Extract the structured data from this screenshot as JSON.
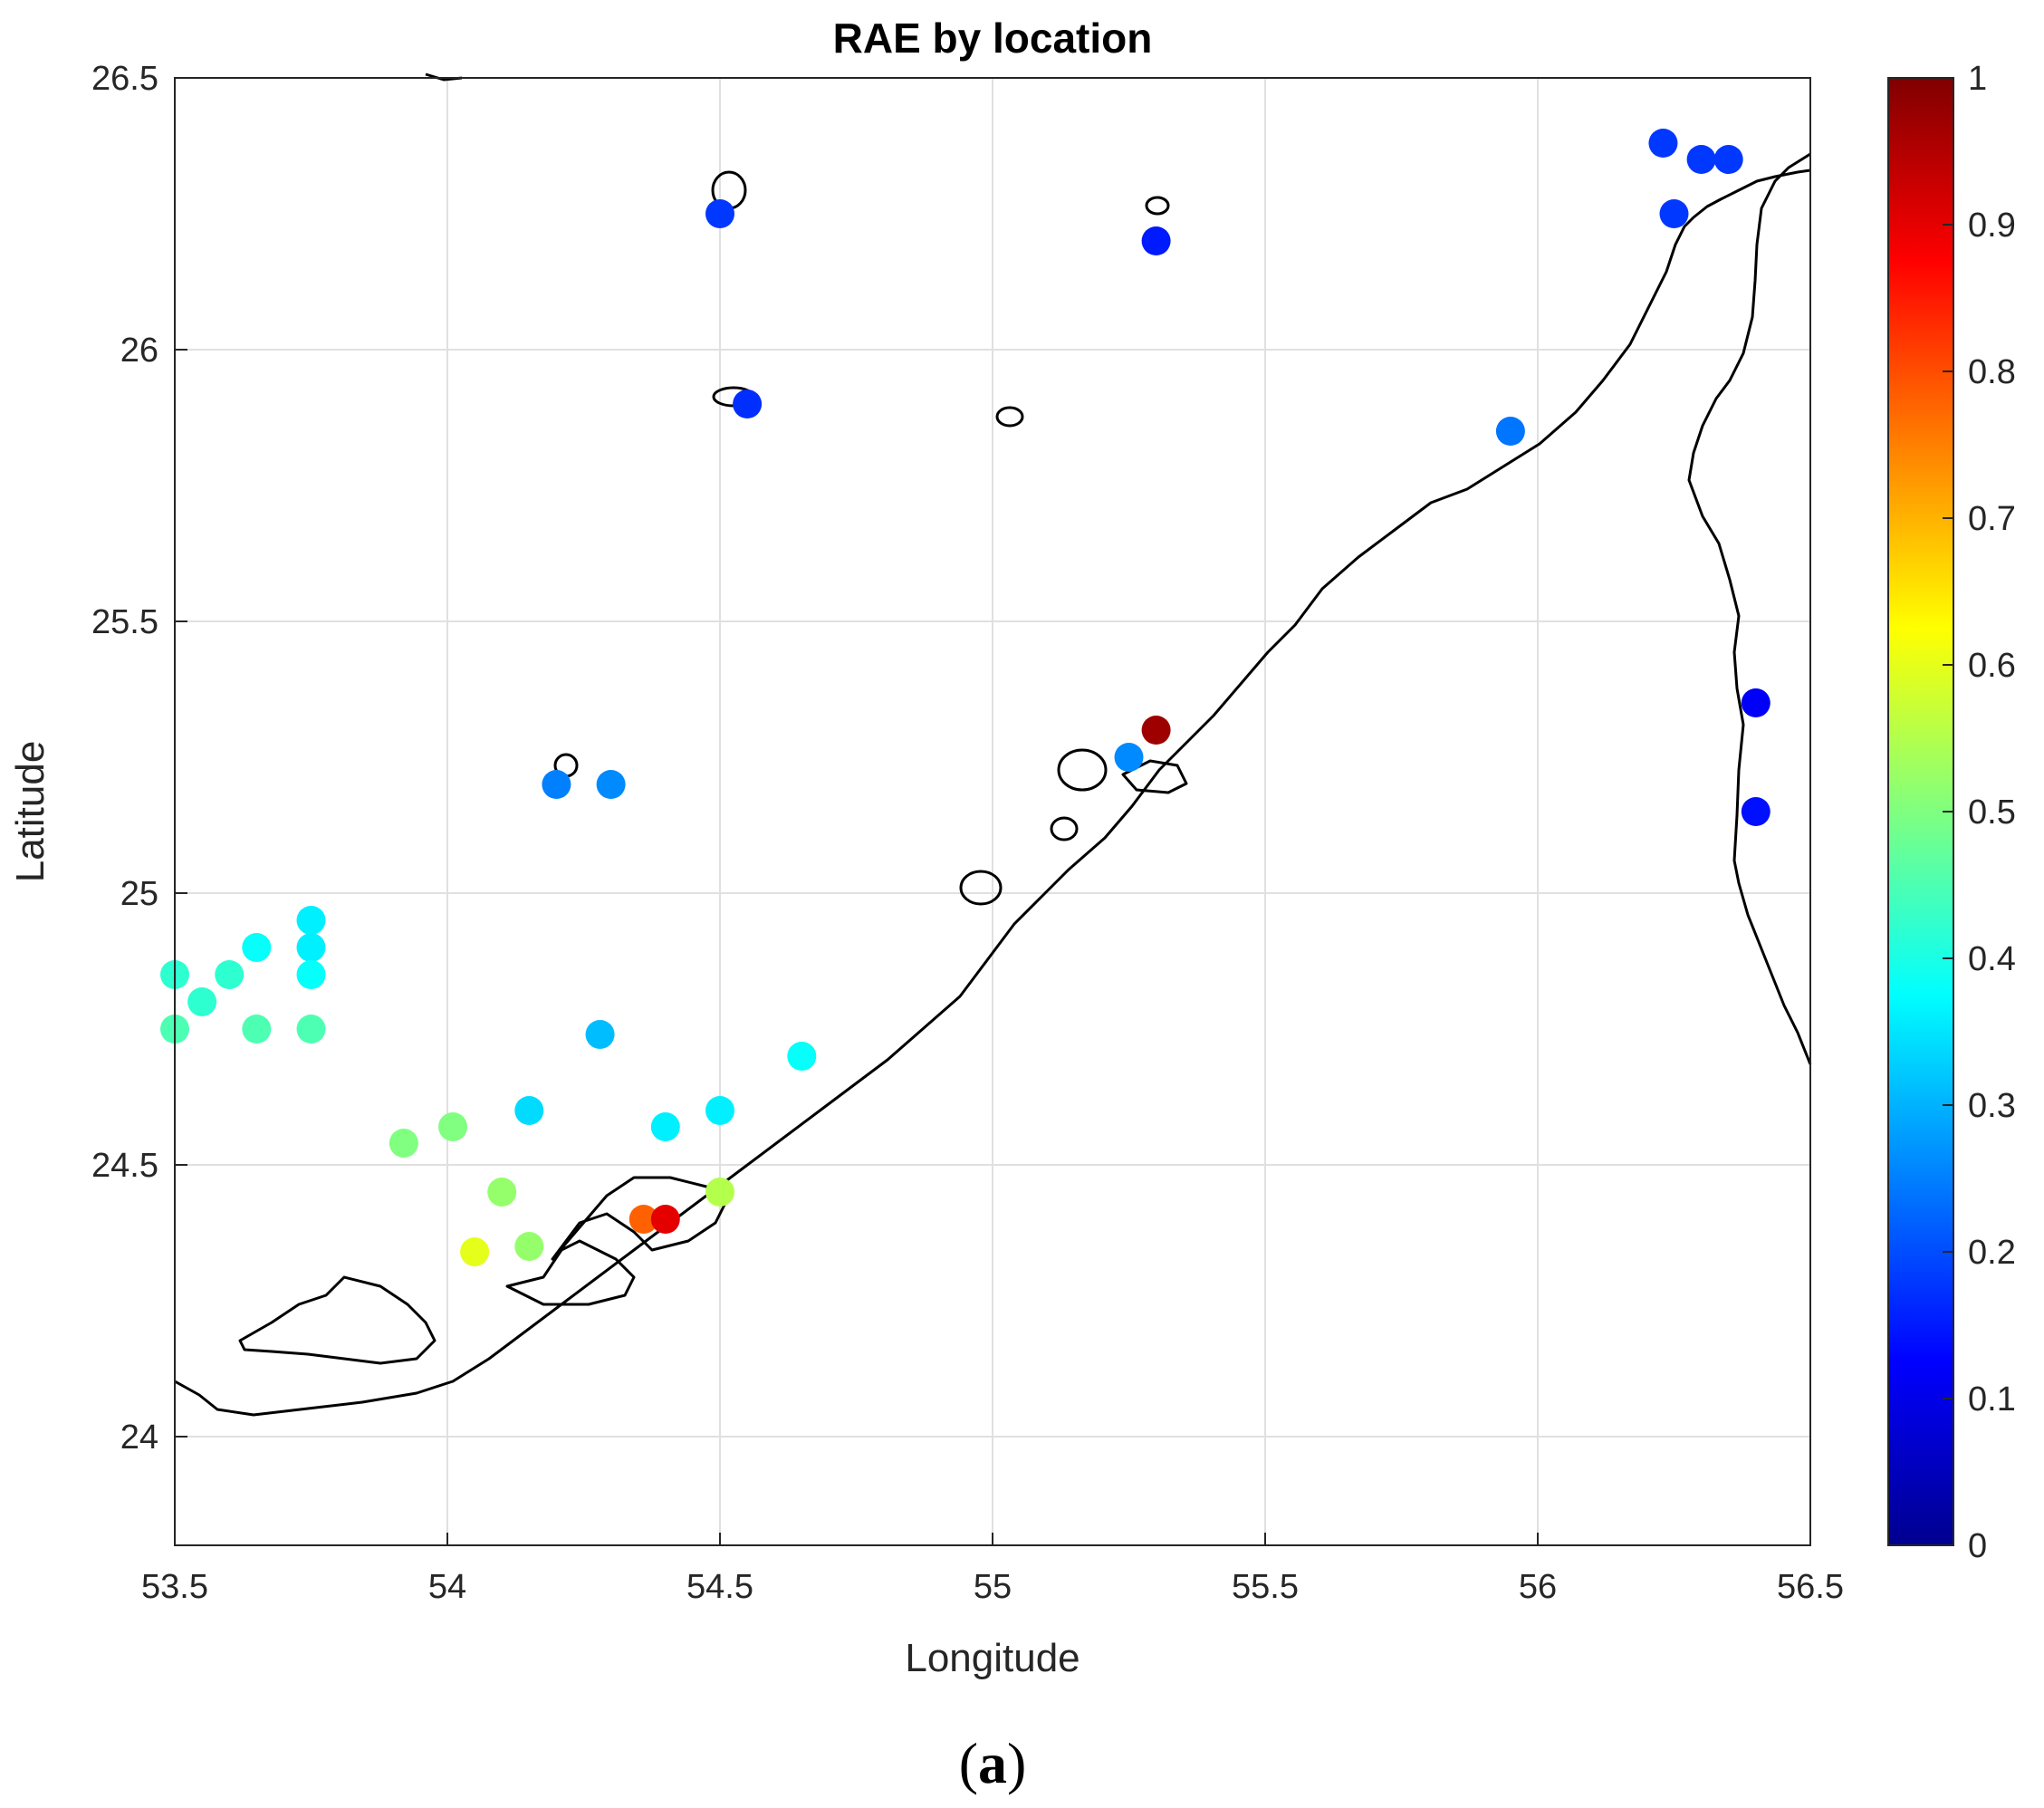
{
  "chart_data": {
    "type": "scatter",
    "title": "RAE by location",
    "xlabel": "Longitude",
    "ylabel": "Latitude",
    "xlim": [
      53.5,
      56.5
    ],
    "ylim": [
      23.8,
      26.5
    ],
    "xticks": [
      53.5,
      54,
      54.5,
      55,
      55.5,
      56,
      56.5
    ],
    "yticks": [
      24,
      24.5,
      25,
      25.5,
      26,
      26.5
    ],
    "xtick_labels": [
      "53.5",
      "54",
      "54.5",
      "55",
      "55.5",
      "56",
      "56.5"
    ],
    "ytick_labels": [
      "24",
      "24.5",
      "25",
      "25.5",
      "26",
      "26.5"
    ],
    "grid": true,
    "colorbar": {
      "colormap": "jet",
      "range": [
        0,
        1
      ],
      "ticks": [
        0,
        0.1,
        0.2,
        0.3,
        0.4,
        0.5,
        0.6,
        0.7,
        0.8,
        0.9,
        1
      ],
      "tick_labels": [
        "0",
        "0.1",
        "0.2",
        "0.3",
        "0.4",
        "0.5",
        "0.6",
        "0.7",
        "0.8",
        "0.9",
        "1"
      ],
      "placement": "right"
    },
    "points": [
      {
        "x": 53.5,
        "y": 24.85,
        "value": 0.42
      },
      {
        "x": 53.55,
        "y": 24.8,
        "value": 0.42
      },
      {
        "x": 53.6,
        "y": 24.85,
        "value": 0.42
      },
      {
        "x": 53.65,
        "y": 24.9,
        "value": 0.38
      },
      {
        "x": 53.75,
        "y": 24.95,
        "value": 0.36
      },
      {
        "x": 53.75,
        "y": 24.9,
        "value": 0.36
      },
      {
        "x": 53.75,
        "y": 24.85,
        "value": 0.38
      },
      {
        "x": 53.5,
        "y": 24.75,
        "value": 0.45
      },
      {
        "x": 53.65,
        "y": 24.75,
        "value": 0.45
      },
      {
        "x": 53.75,
        "y": 24.75,
        "value": 0.45
      },
      {
        "x": 54.28,
        "y": 24.74,
        "value": 0.31
      },
      {
        "x": 54.15,
        "y": 24.6,
        "value": 0.34
      },
      {
        "x": 54.01,
        "y": 24.57,
        "value": 0.5
      },
      {
        "x": 53.92,
        "y": 24.54,
        "value": 0.5
      },
      {
        "x": 54.1,
        "y": 24.45,
        "value": 0.52
      },
      {
        "x": 54.05,
        "y": 24.34,
        "value": 0.6
      },
      {
        "x": 54.15,
        "y": 24.35,
        "value": 0.52
      },
      {
        "x": 54.36,
        "y": 24.4,
        "value": 0.78
      },
      {
        "x": 54.4,
        "y": 24.4,
        "value": 0.9
      },
      {
        "x": 54.5,
        "y": 24.45,
        "value": 0.55
      },
      {
        "x": 54.4,
        "y": 24.57,
        "value": 0.36
      },
      {
        "x": 54.5,
        "y": 24.6,
        "value": 0.36
      },
      {
        "x": 54.65,
        "y": 24.7,
        "value": 0.38
      },
      {
        "x": 54.2,
        "y": 25.2,
        "value": 0.25
      },
      {
        "x": 54.3,
        "y": 25.2,
        "value": 0.26
      },
      {
        "x": 54.5,
        "y": 26.25,
        "value": 0.18
      },
      {
        "x": 54.55,
        "y": 25.9,
        "value": 0.17
      },
      {
        "x": 55.3,
        "y": 26.2,
        "value": 0.15
      },
      {
        "x": 55.25,
        "y": 25.25,
        "value": 0.26
      },
      {
        "x": 55.3,
        "y": 25.3,
        "value": 0.97
      },
      {
        "x": 55.95,
        "y": 25.85,
        "value": 0.24
      },
      {
        "x": 56.23,
        "y": 26.38,
        "value": 0.18
      },
      {
        "x": 56.25,
        "y": 26.25,
        "value": 0.18
      },
      {
        "x": 56.3,
        "y": 26.35,
        "value": 0.18
      },
      {
        "x": 56.35,
        "y": 26.35,
        "value": 0.18
      },
      {
        "x": 56.4,
        "y": 25.35,
        "value": 0.12
      },
      {
        "x": 56.4,
        "y": 25.15,
        "value": 0.14
      }
    ]
  },
  "caption": {
    "open": "(",
    "letter": "a",
    "close": ")"
  }
}
